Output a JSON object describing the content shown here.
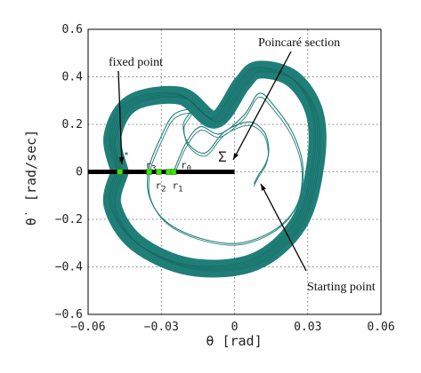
{
  "chart_data": {
    "type": "line",
    "xlabel": "θ [rad]",
    "ylabel": "θ˙ [rad/sec]",
    "xlim": [
      -0.06,
      0.06
    ],
    "ylim": [
      -0.6,
      0.6
    ],
    "x_ticks": [
      "−0.06",
      "−0.03",
      "0",
      "0.03",
      "0.06"
    ],
    "y_ticks": [
      "0.6",
      "0.4",
      "0.2",
      "0",
      "−0.2",
      "−0.4",
      "−0.6"
    ],
    "x_tick_values": [
      -0.06,
      -0.03,
      0,
      0.03,
      0.06
    ],
    "y_tick_values": [
      0.6,
      0.4,
      0.2,
      0,
      -0.2,
      -0.4,
      -0.6
    ],
    "grid": true,
    "trajectory_color": "#1f7f78",
    "section_color": "#000000",
    "point_color": "#39e600",
    "poincare_section": {
      "label": "Σ",
      "x_range": [
        -0.06,
        0
      ],
      "y": 0
    },
    "section_points": [
      {
        "label": "r*",
        "x": -0.047,
        "y": 0
      },
      {
        "label": "r3",
        "x": -0.035,
        "y": 0
      },
      {
        "label": "r2",
        "x": -0.031,
        "y": 0
      },
      {
        "label": "r1",
        "x": -0.027,
        "y": 0
      },
      {
        "label": "r0",
        "x": -0.025,
        "y": 0
      }
    ],
    "band_orbit": {
      "x": [
        -0.047,
        -0.05,
        -0.042,
        -0.022,
        -0.008,
        0.003,
        0.01,
        0.024,
        0.033,
        0.033,
        0.026,
        0.008,
        -0.018,
        -0.04,
        -0.05,
        -0.047
      ],
      "y": [
        0,
        0.15,
        0.29,
        0.32,
        0.22,
        0.37,
        0.43,
        0.39,
        0.24,
        0.02,
        -0.22,
        -0.38,
        -0.4,
        -0.3,
        -0.14,
        0
      ]
    },
    "transient_orbit": {
      "x": [
        0.008,
        0.01,
        0.013,
        0.014,
        0.012,
        0.006,
        -0.004,
        -0.012,
        -0.019,
        -0.021,
        -0.018,
        -0.025,
        -0.03,
        -0.035,
        -0.035,
        -0.028,
        -0.014,
        0.002,
        0.017,
        0.026,
        0.028,
        0.024,
        0.016,
        0.01,
        0.004,
        -0.006,
        -0.014,
        -0.02,
        -0.025
      ],
      "y": [
        -0.05,
        -0.01,
        0.04,
        0.1,
        0.17,
        0.21,
        0.17,
        0.08,
        0.12,
        0.2,
        0.26,
        0.24,
        0.15,
        0.02,
        -0.1,
        -0.21,
        -0.28,
        -0.3,
        -0.24,
        -0.13,
        0.02,
        0.16,
        0.28,
        0.33,
        0.24,
        0.16,
        0.19,
        0.12,
        0
      ]
    },
    "annotations": {
      "poincare_section": "Poincaré section",
      "fixed_point": "fixed point",
      "starting_point": "Starting point"
    }
  }
}
